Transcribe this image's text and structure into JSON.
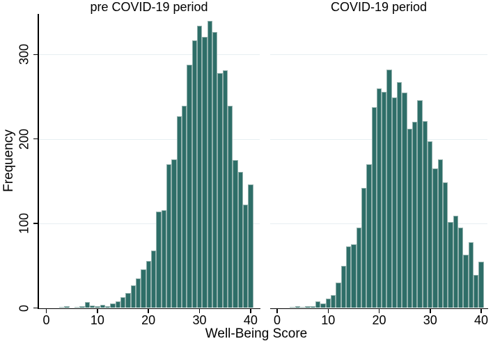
{
  "figure": {
    "x_axis_title": "Well-Being Score",
    "y_axis_title": "Frequency",
    "background_color": "#ffffff",
    "axis_color": "#000000",
    "bar_fill_color": "#2e6e68",
    "bar_edge_color": "#93b1ad",
    "gridline_color": "#e7eff2",
    "text_color": "#000000"
  },
  "chart_data": [
    {
      "type": "bar",
      "title": "pre COVID-19 period",
      "xlabel": "Well-Being Score",
      "ylabel": "Frequency",
      "bin_width": 1,
      "bars_centered_on_x": true,
      "x": [
        3,
        4,
        5,
        6,
        7,
        8,
        9,
        10,
        11,
        12,
        13,
        14,
        15,
        16,
        17,
        18,
        19,
        20,
        21,
        22,
        23,
        24,
        25,
        26,
        27,
        28,
        29,
        30,
        31,
        32,
        33,
        34,
        35,
        36,
        37,
        38,
        39,
        40
      ],
      "values": [
        1,
        2,
        0,
        1,
        2,
        7,
        3,
        2,
        4,
        2,
        5,
        8,
        13,
        18,
        27,
        35,
        46,
        56,
        68,
        114,
        116,
        170,
        176,
        227,
        239,
        288,
        317,
        334,
        321,
        340,
        327,
        278,
        281,
        239,
        175,
        161,
        122,
        146
      ],
      "x_ticks": [
        0,
        10,
        20,
        30,
        40
      ],
      "y_ticks": [
        0,
        100,
        200,
        300
      ],
      "xlim": [
        -1.5,
        41.8
      ],
      "ylim": [
        0,
        348
      ],
      "grid": "horizontal",
      "legend": "none"
    },
    {
      "type": "bar",
      "title": "COVID-19 period",
      "xlabel": "Well-Being Score",
      "ylabel": "Frequency",
      "bin_width": 1,
      "bars_centered_on_x": true,
      "x": [
        3,
        4,
        5,
        6,
        7,
        8,
        9,
        10,
        11,
        12,
        13,
        14,
        15,
        16,
        17,
        18,
        19,
        20,
        21,
        22,
        23,
        24,
        25,
        26,
        27,
        28,
        29,
        30,
        31,
        32,
        33,
        34,
        35,
        36,
        37,
        38,
        39,
        40
      ],
      "values": [
        1,
        2,
        1,
        2,
        2,
        8,
        5,
        11,
        15,
        30,
        50,
        73,
        75,
        95,
        142,
        170,
        238,
        260,
        256,
        282,
        249,
        267,
        255,
        212,
        220,
        246,
        221,
        197,
        165,
        176,
        149,
        102,
        109,
        95,
        63,
        78,
        39,
        55
      ],
      "x_ticks": [
        0,
        10,
        20,
        30,
        40
      ],
      "y_ticks": [
        0,
        100,
        200,
        300
      ],
      "xlim": [
        -1.5,
        41.8
      ],
      "ylim": [
        0,
        348
      ],
      "grid": "horizontal",
      "legend": "none"
    }
  ]
}
